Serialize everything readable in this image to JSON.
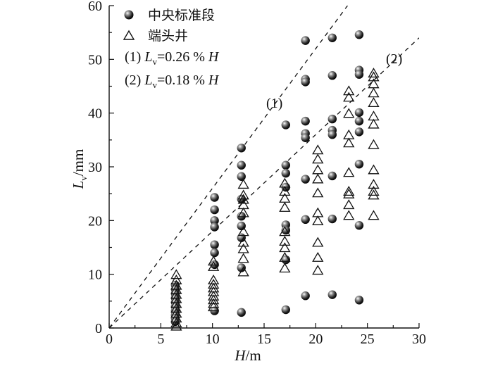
{
  "chart_data": {
    "type": "scatter",
    "xlabel_var": "H",
    "xlabel_unit": "/m",
    "ylabel_var": "L",
    "ylabel_sub": "v",
    "ylabel_unit": "/mm",
    "xlim": [
      0,
      30
    ],
    "ylim": [
      0,
      60
    ],
    "xticks": [
      0,
      5,
      10,
      15,
      20,
      25,
      30
    ],
    "yticks": [
      0,
      10,
      20,
      30,
      40,
      50,
      60
    ],
    "grid": false,
    "legend_position": "top-left",
    "legend": {
      "series1": "中央标准段",
      "series2": "端头井",
      "line1_num": "(1) ",
      "line1_var": "L",
      "line1_sub": "v",
      "line1_eq": "=0.26 % ",
      "line1_h": "H",
      "line2_num": "(2) ",
      "line2_var": "L",
      "line2_sub": "v",
      "line2_eq": "=0.18 % ",
      "line2_h": "H"
    },
    "reference_lines": [
      {
        "label": "(1)",
        "slope_mm_per_m": 2.6
      },
      {
        "label": "(2)",
        "slope_mm_per_m": 1.8
      }
    ],
    "series": [
      {
        "name": "中央标准段",
        "marker": "filled-sphere",
        "points": [
          [
            6.4,
            8.0
          ],
          [
            6.4,
            7.2
          ],
          [
            6.4,
            6.4
          ],
          [
            6.4,
            5.6
          ],
          [
            6.4,
            4.8
          ],
          [
            6.4,
            4.0
          ],
          [
            6.4,
            3.2
          ],
          [
            6.4,
            2.4
          ],
          [
            6.4,
            1.8
          ],
          [
            6.4,
            1.2
          ],
          [
            10.2,
            24.3
          ],
          [
            10.2,
            22.0
          ],
          [
            10.2,
            20.0
          ],
          [
            10.2,
            18.8
          ],
          [
            10.2,
            15.5
          ],
          [
            10.2,
            14.0
          ],
          [
            10.2,
            11.8
          ],
          [
            10.2,
            3.2
          ],
          [
            12.8,
            33.5
          ],
          [
            12.8,
            30.3
          ],
          [
            12.8,
            28.2
          ],
          [
            12.8,
            24.0
          ],
          [
            12.8,
            20.8
          ],
          [
            12.8,
            19.0
          ],
          [
            12.8,
            16.8
          ],
          [
            12.8,
            11.2
          ],
          [
            12.8,
            2.9
          ],
          [
            17.1,
            37.8
          ],
          [
            17.1,
            30.3
          ],
          [
            17.1,
            28.8
          ],
          [
            17.1,
            26.2
          ],
          [
            17.1,
            19.2
          ],
          [
            17.1,
            18.2
          ],
          [
            17.1,
            12.7
          ],
          [
            17.1,
            3.4
          ],
          [
            19.0,
            53.5
          ],
          [
            19.0,
            46.3
          ],
          [
            19.0,
            45.8
          ],
          [
            19.0,
            38.5
          ],
          [
            19.0,
            36.2
          ],
          [
            19.0,
            35.4
          ],
          [
            19.0,
            27.7
          ],
          [
            19.0,
            20.2
          ],
          [
            19.0,
            6.0
          ],
          [
            21.6,
            54.0
          ],
          [
            21.6,
            47.0
          ],
          [
            21.6,
            38.9
          ],
          [
            21.6,
            36.8
          ],
          [
            21.6,
            36.0
          ],
          [
            21.6,
            28.3
          ],
          [
            21.6,
            20.3
          ],
          [
            21.6,
            6.2
          ],
          [
            24.2,
            54.6
          ],
          [
            24.2,
            48.0
          ],
          [
            24.2,
            47.2
          ],
          [
            24.2,
            40.1
          ],
          [
            24.2,
            38.5
          ],
          [
            24.2,
            36.5
          ],
          [
            24.2,
            30.5
          ],
          [
            24.2,
            19.1
          ],
          [
            24.2,
            5.2
          ]
        ]
      },
      {
        "name": "端头井",
        "marker": "open-triangle",
        "points": [
          [
            6.5,
            10.0
          ],
          [
            6.5,
            9.0
          ],
          [
            6.5,
            8.0
          ],
          [
            6.5,
            7.2
          ],
          [
            6.5,
            6.3
          ],
          [
            6.5,
            5.5
          ],
          [
            6.5,
            4.6
          ],
          [
            6.5,
            3.7
          ],
          [
            6.5,
            2.8
          ],
          [
            6.5,
            1.9
          ],
          [
            6.5,
            1.0
          ],
          [
            6.5,
            0.4
          ],
          [
            10.1,
            12.5
          ],
          [
            10.1,
            11.5
          ],
          [
            10.1,
            9.0
          ],
          [
            10.1,
            8.2
          ],
          [
            10.1,
            7.5
          ],
          [
            10.1,
            6.8
          ],
          [
            10.1,
            6.0
          ],
          [
            10.1,
            5.3
          ],
          [
            10.1,
            4.6
          ],
          [
            10.1,
            4.0
          ],
          [
            13.0,
            26.8
          ],
          [
            13.0,
            24.8
          ],
          [
            13.0,
            24.0
          ],
          [
            13.0,
            23.0
          ],
          [
            13.0,
            21.5
          ],
          [
            13.0,
            18.0
          ],
          [
            13.0,
            16.0
          ],
          [
            13.0,
            14.8
          ],
          [
            13.0,
            13.0
          ],
          [
            13.0,
            10.5
          ],
          [
            17.0,
            27.0
          ],
          [
            17.0,
            25.5
          ],
          [
            17.0,
            24.2
          ],
          [
            17.0,
            22.5
          ],
          [
            17.0,
            18.0
          ],
          [
            17.0,
            16.2
          ],
          [
            17.0,
            15.0
          ],
          [
            17.0,
            13.2
          ],
          [
            17.0,
            11.2
          ],
          [
            20.2,
            33.2
          ],
          [
            20.2,
            31.5
          ],
          [
            20.2,
            29.5
          ],
          [
            20.2,
            27.8
          ],
          [
            20.2,
            25.2
          ],
          [
            20.2,
            21.5
          ],
          [
            20.2,
            20.0
          ],
          [
            20.2,
            16.0
          ],
          [
            20.2,
            13.2
          ],
          [
            20.2,
            10.8
          ],
          [
            23.2,
            44.2
          ],
          [
            23.2,
            43.0
          ],
          [
            23.2,
            40.0
          ],
          [
            23.2,
            36.0
          ],
          [
            23.2,
            34.5
          ],
          [
            23.2,
            29.0
          ],
          [
            23.2,
            25.5
          ],
          [
            23.2,
            25.0
          ],
          [
            23.2,
            23.0
          ],
          [
            23.2,
            21.0
          ],
          [
            25.6,
            47.5
          ],
          [
            25.6,
            46.8
          ],
          [
            25.6,
            45.5
          ],
          [
            25.6,
            43.8
          ],
          [
            25.6,
            42.0
          ],
          [
            25.6,
            39.5
          ],
          [
            25.6,
            38.0
          ],
          [
            25.6,
            34.2
          ],
          [
            25.6,
            29.5
          ],
          [
            25.6,
            26.8
          ],
          [
            25.6,
            25.5
          ],
          [
            25.6,
            24.8
          ],
          [
            25.6,
            21.0
          ]
        ]
      }
    ]
  }
}
